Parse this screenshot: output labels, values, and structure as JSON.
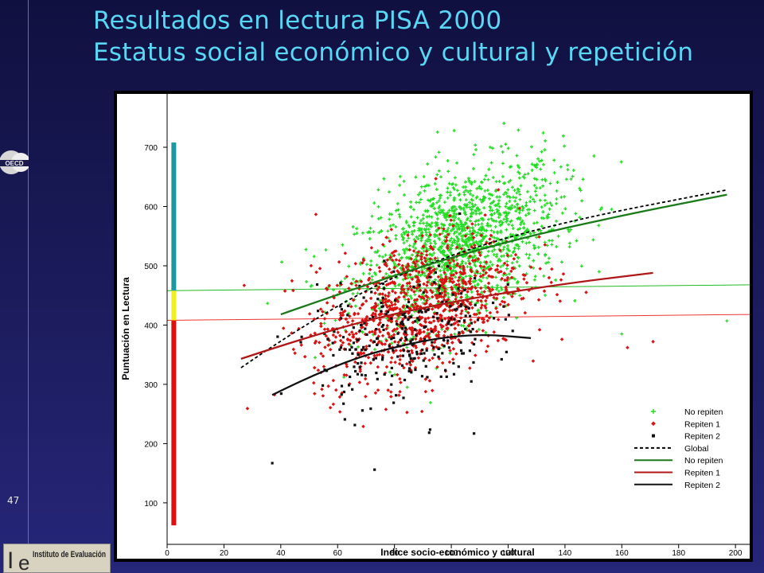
{
  "slide": {
    "title_line1": "Resultados en lectura PISA 2000",
    "title_line2": "Estatus social económico y cultural y repetición",
    "number": "47",
    "oecd_logo_text": "OECD",
    "inst_logo_text": "Instituto de Evaluación"
  },
  "colors": {
    "no_repiten": "#22dd22",
    "repiten1": "#dd1111",
    "repiten2": "#111111",
    "global": "#000000",
    "no_repiten_line": "#1a7a1a",
    "repiten1_line": "#b01818",
    "repiten2_line": "#111111",
    "bar_teal": "#1a9aa0",
    "bar_yellow": "#f0f020",
    "bar_red": "#e01010",
    "hline_green": "#22bb22",
    "hline_red": "#ee3333"
  },
  "chart_data": {
    "type": "scatter",
    "xlabel": "Indice socio-económico y cultural",
    "ylabel": "Puntuación en Lectura",
    "xlim": [
      0,
      205
    ],
    "ylim": [
      30,
      790
    ],
    "xticks": [
      0,
      20,
      40,
      60,
      80,
      100,
      120,
      140,
      160,
      180,
      200
    ],
    "yticks": [
      100,
      200,
      300,
      400,
      500,
      600,
      700
    ],
    "grid": false,
    "legend_position": "bottom-right",
    "legend": [
      {
        "label": "No repiten",
        "kind": "marker",
        "series": "no_repiten"
      },
      {
        "label": "Repiten 1",
        "kind": "marker",
        "series": "repiten1"
      },
      {
        "label": "Repiten 2",
        "kind": "marker",
        "series": "repiten2"
      },
      {
        "label": "Global",
        "kind": "dashed-line",
        "series": "global"
      },
      {
        "label": "No repiten",
        "kind": "line",
        "series": "no_repiten_line"
      },
      {
        "label": "Repiten 1",
        "kind": "line",
        "series": "repiten1_line"
      },
      {
        "label": "Repiten 2",
        "kind": "line",
        "series": "repiten2_line"
      }
    ],
    "scatter_clouds": [
      {
        "series": "no_repiten",
        "n": 1500,
        "center": [
          103,
          535
        ],
        "spread": [
          18,
          62
        ],
        "xrange": [
          35,
          200
        ]
      },
      {
        "series": "repiten1",
        "n": 1000,
        "center": [
          88,
          430
        ],
        "spread": [
          18,
          58
        ],
        "xrange": [
          25,
          172
        ]
      },
      {
        "series": "repiten2",
        "n": 260,
        "center": [
          83,
          380
        ],
        "spread": [
          15,
          55
        ],
        "xrange": [
          35,
          130
        ]
      }
    ],
    "scatter_points": [
      {
        "series": "repiten2",
        "x": 37,
        "y": 167
      },
      {
        "series": "repiten2",
        "x": 73,
        "y": 156
      },
      {
        "series": "repiten2",
        "x": 108,
        "y": 217
      },
      {
        "series": "repiten1",
        "x": 162,
        "y": 362
      },
      {
        "series": "repiten1",
        "x": 171,
        "y": 372
      },
      {
        "series": "no_repiten",
        "x": 197,
        "y": 407
      },
      {
        "series": "no_repiten",
        "x": 160,
        "y": 385
      },
      {
        "series": "no_repiten",
        "x": 101,
        "y": 728
      },
      {
        "series": "repiten2",
        "x": 103,
        "y": 588
      }
    ],
    "fit_lines": [
      {
        "series": "global",
        "style": "dashed",
        "x": [
          26,
          60,
          100,
          140,
          197
        ],
        "y": [
          328,
          440,
          520,
          575,
          628
        ]
      },
      {
        "series": "no_repiten_line",
        "style": "solid",
        "x": [
          40,
          80,
          120,
          160,
          197
        ],
        "y": [
          418,
          485,
          542,
          585,
          620
        ]
      },
      {
        "series": "repiten1_line",
        "style": "solid",
        "x": [
          26,
          60,
          100,
          140,
          171
        ],
        "y": [
          343,
          397,
          440,
          470,
          488
        ]
      },
      {
        "series": "repiten2_line",
        "style": "solid",
        "x": [
          37,
          60,
          90,
          110,
          128
        ],
        "y": [
          282,
          337,
          375,
          385,
          378
        ]
      }
    ],
    "reference_lines": [
      {
        "series": "hline_green",
        "x": [
          0,
          208
        ],
        "y": [
          458,
          468
        ]
      },
      {
        "series": "hline_red",
        "x": [
          0,
          208
        ],
        "y": [
          408,
          418
        ]
      }
    ],
    "left_bar": [
      {
        "series": "bar_teal",
        "y0": 458,
        "y1": 708
      },
      {
        "series": "bar_yellow",
        "y0": 408,
        "y1": 458
      },
      {
        "series": "bar_red",
        "y0": 62,
        "y1": 408
      }
    ]
  }
}
